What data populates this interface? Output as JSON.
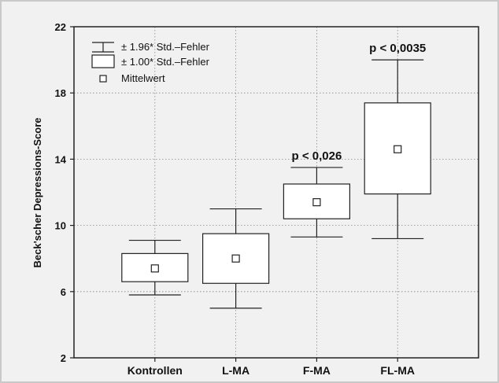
{
  "chart_data": {
    "type": "box",
    "title": "",
    "xlabel": "",
    "ylabel": "Beck'scher Depressions-Score",
    "ylim": [
      2,
      22
    ],
    "yticks": [
      "2",
      "6",
      "10",
      "14",
      "18",
      "22"
    ],
    "grid": true,
    "legend_position": "top-left",
    "legend": {
      "whisker_label": "± 1.96* Std.–Fehler",
      "box_label": "± 1.00* Std.–Fehler",
      "mean_label": "Mittelwert"
    },
    "categories": [
      "Kontrollen",
      "L-MA",
      "F-MA",
      "FL-MA"
    ],
    "series": [
      {
        "category": "Kontrollen",
        "mean": 7.4,
        "box_low": 6.6,
        "box_high": 8.3,
        "whisker_low": 5.8,
        "whisker_high": 9.1,
        "annotation": ""
      },
      {
        "category": "L-MA",
        "mean": 8.0,
        "box_low": 6.5,
        "box_high": 9.5,
        "whisker_low": 5.0,
        "whisker_high": 11.0,
        "annotation": ""
      },
      {
        "category": "F-MA",
        "mean": 11.4,
        "box_low": 10.4,
        "box_high": 12.5,
        "whisker_low": 9.3,
        "whisker_high": 13.5,
        "annotation": "p < 0,026"
      },
      {
        "category": "FL-MA",
        "mean": 14.6,
        "box_low": 11.9,
        "box_high": 17.4,
        "whisker_low": 9.2,
        "whisker_high": 20.0,
        "annotation": "p < 0,0035"
      }
    ]
  }
}
